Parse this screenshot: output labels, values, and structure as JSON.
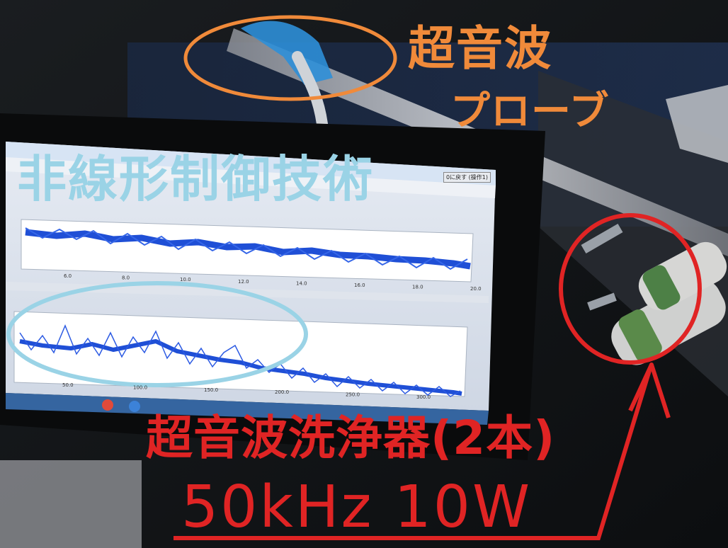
{
  "labels": {
    "probe_title": "超音波",
    "probe_sub": "プローブ",
    "nonlinear_control": "非線形制御技術",
    "cleaner": "超音波洗浄器(2本)",
    "spec": "50kHz  10W"
  },
  "colors": {
    "probe_annotation": "#f08a3a",
    "nonlinear_annotation": "#9ad3e6",
    "cleaner_annotation": "#e02424",
    "waveform": "#1f4fd6"
  },
  "screen": {
    "button_label": "0に戻す (操作1)",
    "top_ticks": [
      "6.0",
      "8.0",
      "10.0",
      "12.0",
      "14.0",
      "16.0",
      "18.0",
      "20.0"
    ],
    "bottom_ticks": [
      "50.0",
      "100.0",
      "150.0",
      "200.0",
      "250.0",
      "300.0"
    ]
  },
  "icons": [
    "windows-taskbar-icons"
  ]
}
